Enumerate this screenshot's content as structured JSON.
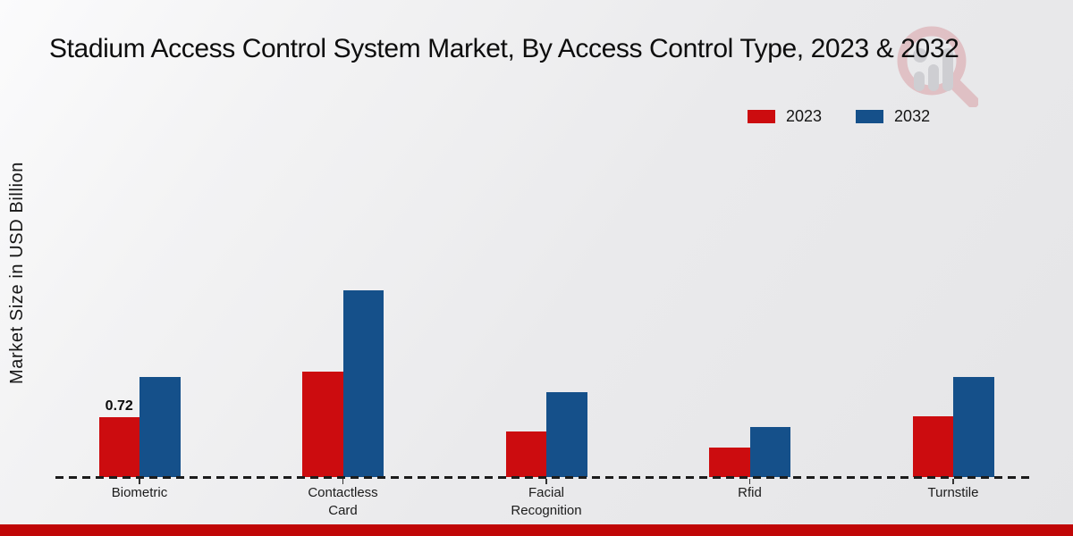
{
  "chart_data": {
    "type": "bar",
    "title": "Stadium Access Control System Market, By Access Control Type, 2023 & 2032",
    "ylabel": "Market Size in USD Billion",
    "xlabel": "",
    "categories": [
      "Biometric",
      "Contactless Card",
      "Facial Recognition",
      "Rfid",
      "Turnstile"
    ],
    "series": [
      {
        "name": "2023",
        "color": "#cc0c0f",
        "values": [
          0.72,
          1.27,
          0.55,
          0.35,
          0.73
        ]
      },
      {
        "name": "2032",
        "color": "#15508a",
        "values": [
          1.2,
          2.25,
          1.02,
          0.6,
          1.2
        ]
      }
    ],
    "data_labels": [
      {
        "series_index": 0,
        "category_index": 0,
        "text": "0.72"
      }
    ],
    "ylim": [
      0,
      2.6
    ],
    "grid": false,
    "legend_position": "top-right",
    "baseline_style": "dashed",
    "axis_ticks_visible": false
  },
  "branding": {
    "watermark_icon": "magnifier-bar-chart-logo",
    "bottom_band_color": "#c00606"
  }
}
